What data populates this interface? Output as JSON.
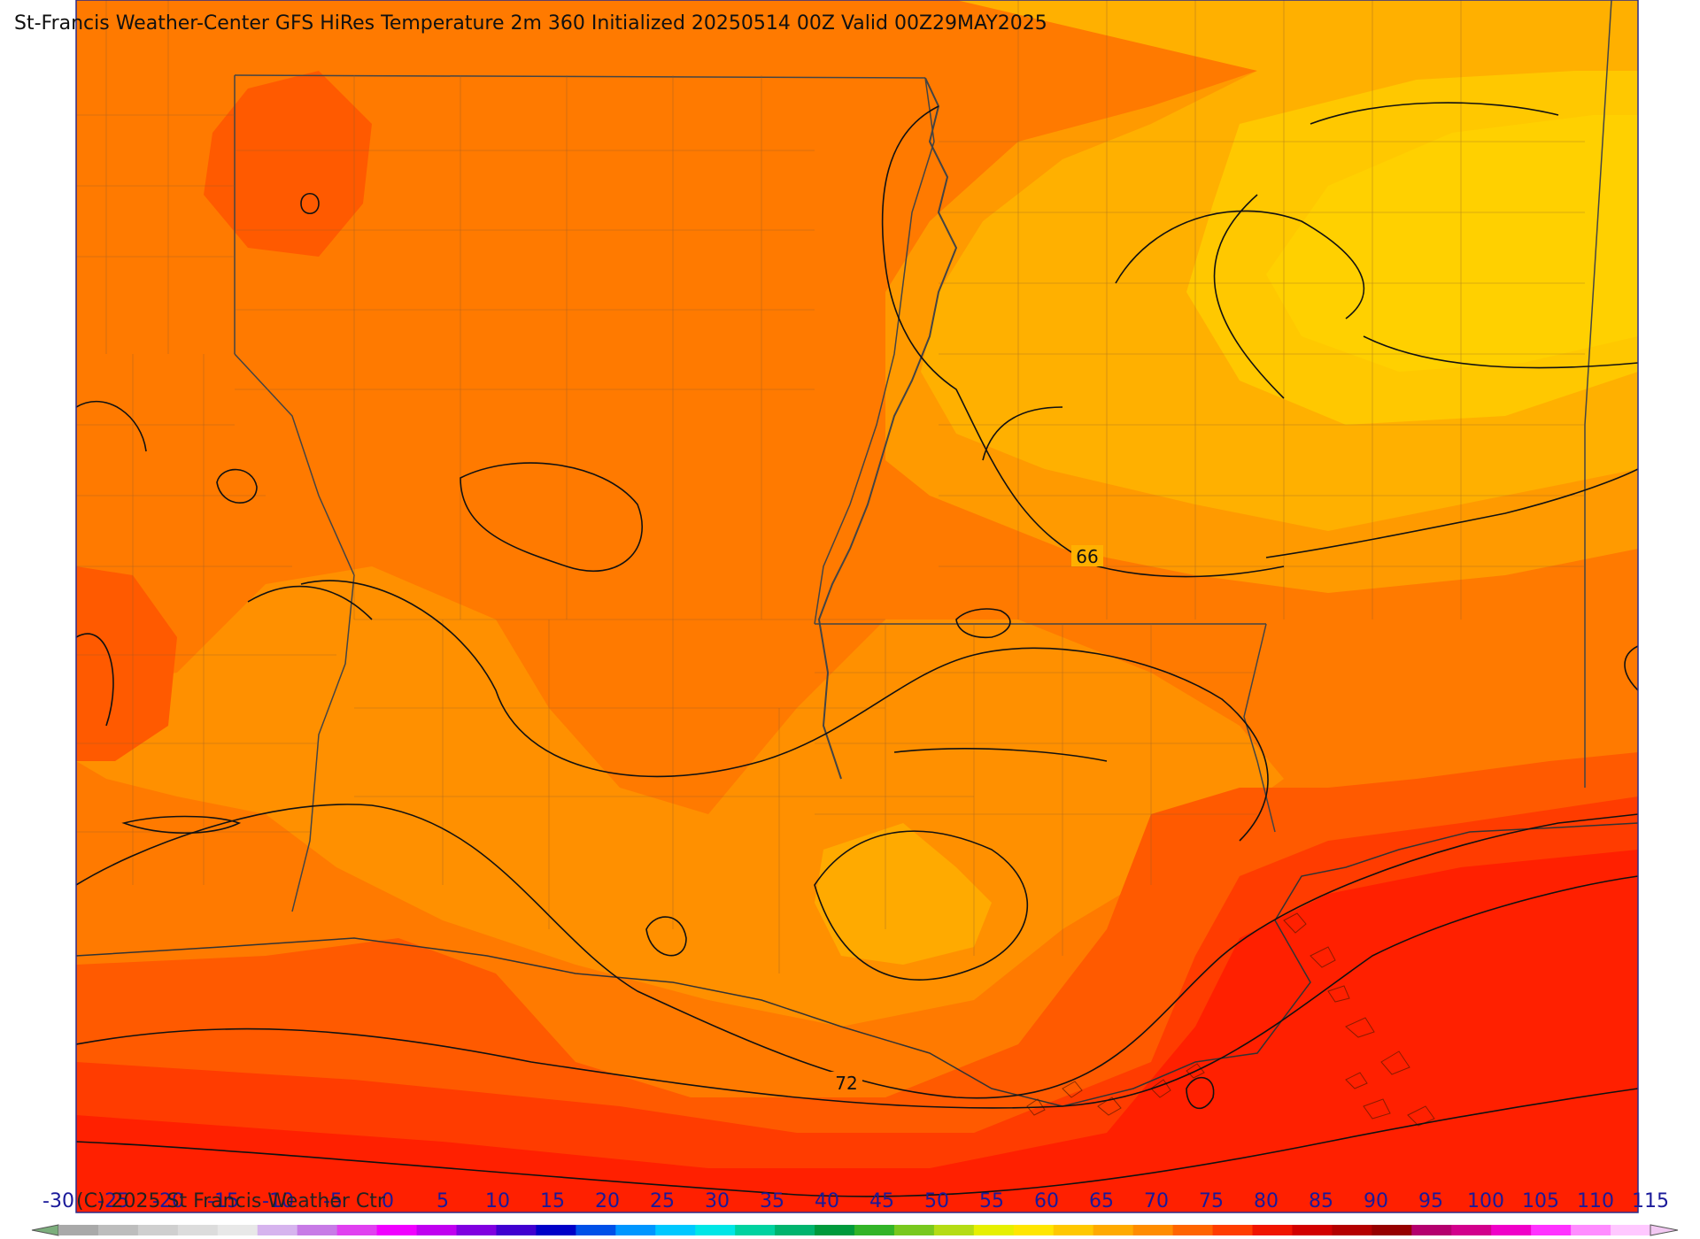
{
  "title": "St-Francis Weather-Center GFS HiRes Temperature 2m  360 Initialized 20250514 00Z Valid 00Z29MAY2025",
  "copyright": "(C) 2025 St Francis Weather Ctr",
  "contour_labels": [
    "66",
    "72"
  ],
  "colorbar": {
    "ticks": [
      "-30",
      "-25",
      "-20",
      "-15",
      "-10",
      "-5",
      "0",
      "5",
      "10",
      "15",
      "20",
      "25",
      "30",
      "35",
      "40",
      "45",
      "50",
      "55",
      "60",
      "65",
      "70",
      "75",
      "80",
      "85",
      "90",
      "95",
      "100",
      "105",
      "110",
      "115"
    ],
    "colors": [
      "#a9a9a9",
      "#bdbdbd",
      "#cfcfcf",
      "#dcdcdc",
      "#e8e8e8",
      "#d6b4ee",
      "#c77be6",
      "#e040f0",
      "#f000ff",
      "#c000f0",
      "#8000e0",
      "#4000d0",
      "#0000c8",
      "#0050e8",
      "#0096ff",
      "#00c8ff",
      "#00e6e6",
      "#00d2a0",
      "#00b46e",
      "#009a3c",
      "#32b428",
      "#78c81e",
      "#b4dc14",
      "#e6f000",
      "#ffe600",
      "#ffc800",
      "#ffaa00",
      "#ff8c00",
      "#ff6400",
      "#ff3c00",
      "#f01400",
      "#d20000",
      "#b40000",
      "#960000",
      "#b4006e",
      "#d2008c",
      "#f000c8",
      "#ff32ff",
      "#ff8cff",
      "#ffc8ff"
    ]
  }
}
